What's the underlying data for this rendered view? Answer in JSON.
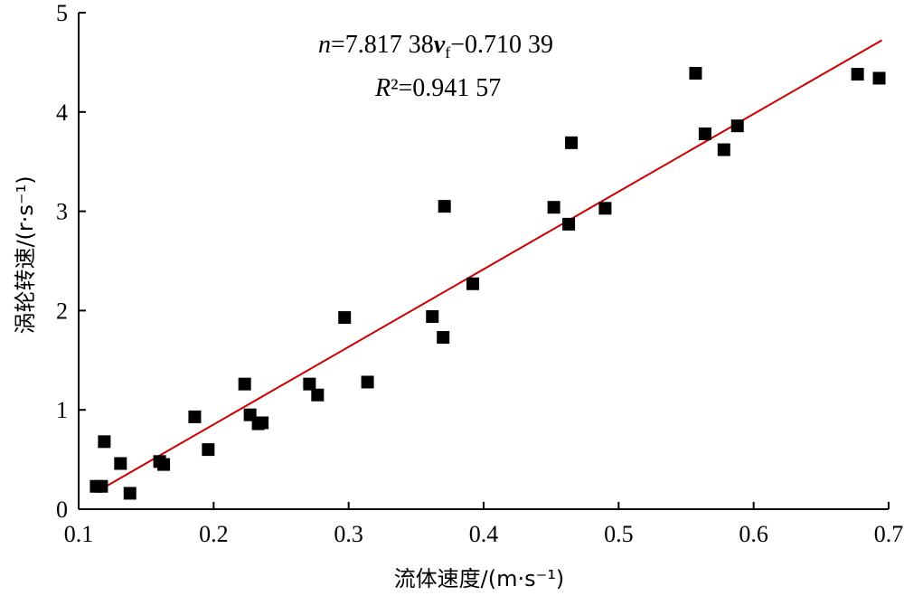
{
  "chart_data": {
    "type": "scatter",
    "title": "",
    "xlabel": "流体速度/(m·s⁻¹)",
    "ylabel": "涡轮转速/(r·s⁻¹)",
    "xlim": [
      0.1,
      0.7
    ],
    "ylim": [
      0,
      5
    ],
    "xticks": [
      "0.1",
      "0.2",
      "0.3",
      "0.4",
      "0.5",
      "0.6",
      "0.7"
    ],
    "yticks": [
      "0",
      "1",
      "2",
      "3",
      "4",
      "5"
    ],
    "grid": false,
    "marker": "square",
    "marker_color": "#000000",
    "fit_line_color": "#cc0000",
    "fit": {
      "slope": 7.81738,
      "intercept": -0.71039,
      "x_range": [
        0.114,
        0.695
      ]
    },
    "equation_text": "n=7.817 38v_f−0.710 39",
    "r2_text": "R²=0.941 57",
    "points": [
      {
        "x": 0.113,
        "y": 0.23
      },
      {
        "x": 0.117,
        "y": 0.23
      },
      {
        "x": 0.119,
        "y": 0.68
      },
      {
        "x": 0.131,
        "y": 0.46
      },
      {
        "x": 0.138,
        "y": 0.16
      },
      {
        "x": 0.16,
        "y": 0.48
      },
      {
        "x": 0.163,
        "y": 0.45
      },
      {
        "x": 0.186,
        "y": 0.93
      },
      {
        "x": 0.196,
        "y": 0.6
      },
      {
        "x": 0.223,
        "y": 1.26
      },
      {
        "x": 0.227,
        "y": 0.95
      },
      {
        "x": 0.233,
        "y": 0.86
      },
      {
        "x": 0.236,
        "y": 0.87
      },
      {
        "x": 0.271,
        "y": 1.26
      },
      {
        "x": 0.277,
        "y": 1.15
      },
      {
        "x": 0.297,
        "y": 1.93
      },
      {
        "x": 0.314,
        "y": 1.28
      },
      {
        "x": 0.362,
        "y": 1.94
      },
      {
        "x": 0.37,
        "y": 1.73
      },
      {
        "x": 0.371,
        "y": 3.05
      },
      {
        "x": 0.392,
        "y": 2.27
      },
      {
        "x": 0.452,
        "y": 3.04
      },
      {
        "x": 0.463,
        "y": 2.87
      },
      {
        "x": 0.465,
        "y": 3.69
      },
      {
        "x": 0.49,
        "y": 3.03
      },
      {
        "x": 0.557,
        "y": 4.39
      },
      {
        "x": 0.564,
        "y": 3.78
      },
      {
        "x": 0.578,
        "y": 3.62
      },
      {
        "x": 0.588,
        "y": 3.86
      },
      {
        "x": 0.677,
        "y": 4.38
      },
      {
        "x": 0.693,
        "y": 4.34
      }
    ]
  }
}
